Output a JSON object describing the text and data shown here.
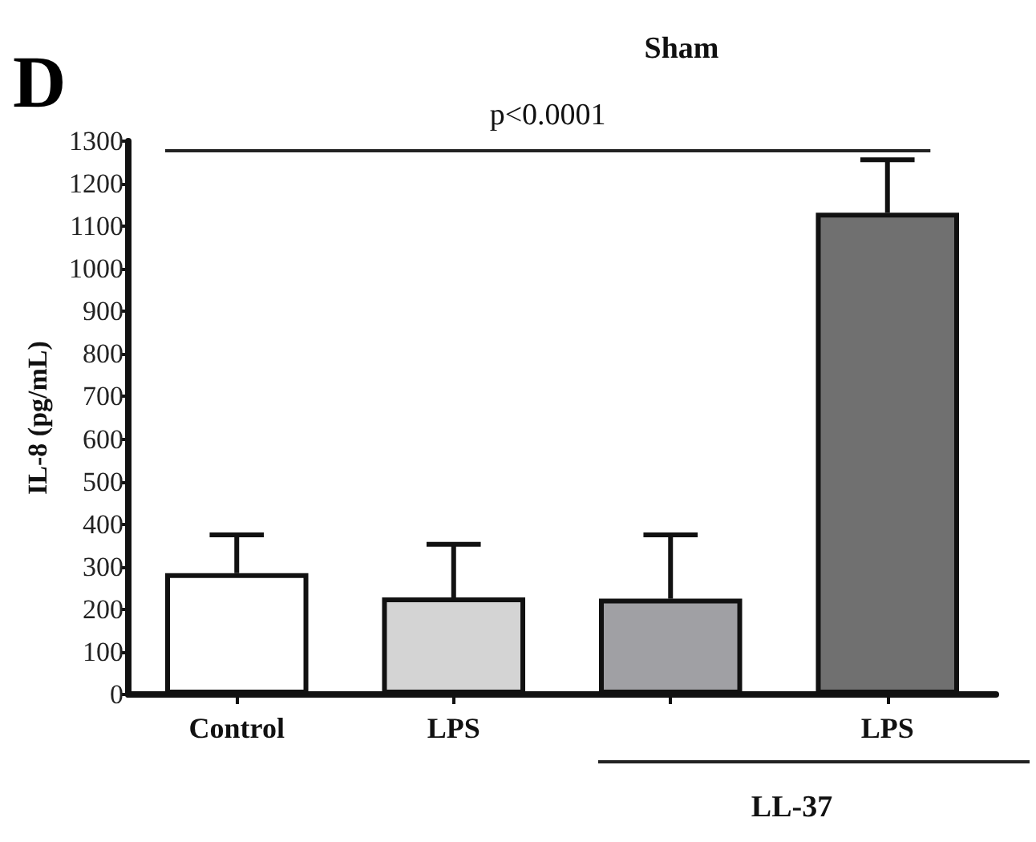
{
  "chart_data": {
    "type": "bar",
    "title": "Sham",
    "ylabel": "IL-8 (pg/mL)",
    "categories": [
      "Control",
      "LPS",
      null,
      "LPS"
    ],
    "values": [
      285,
      228,
      225,
      1132
    ],
    "colors": [
      "#ffffff",
      "#d4d4d4",
      "#a0a0a4",
      "#707070"
    ],
    "errors": [
      [
        285,
        375
      ],
      [
        228,
        353
      ],
      [
        225,
        375
      ],
      [
        1132,
        1256
      ]
    ],
    "ylim": [
      0,
      1300
    ],
    "yticks": [
      0,
      100,
      200,
      300,
      400,
      500,
      600,
      700,
      800,
      900,
      1000,
      1100,
      1200,
      1300
    ],
    "grid": false,
    "ref_lines": [
      {
        "axis": "y",
        "value": 1280,
        "label": "p<0.0001"
      }
    ],
    "annotations": [
      "D",
      "LL-37"
    ]
  }
}
